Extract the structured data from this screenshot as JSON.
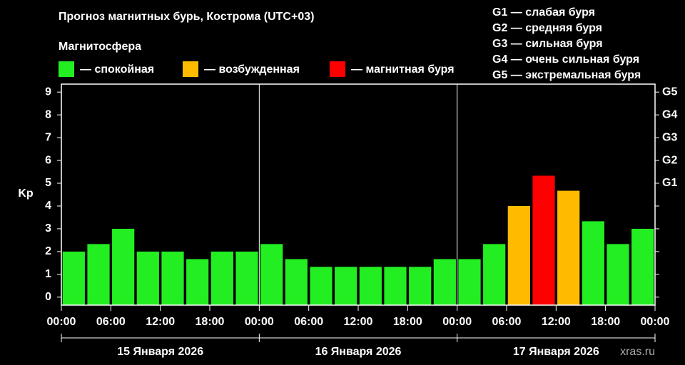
{
  "chart_data": {
    "type": "bar",
    "title": "Прогноз магнитных бурь, Кострома (UTC+03)",
    "legend_title": "Магнитосфера",
    "legend": [
      {
        "label": "— спокойная",
        "color": "#22ee22"
      },
      {
        "label": "— возбужденная",
        "color": "#ffbb00"
      },
      {
        "label": "— магнитная буря",
        "color": "#ff0000"
      }
    ],
    "scale_notes": [
      "G1 — слабая буря",
      "G2 — средняя буря",
      "G3 — сильная буря",
      "G4 — очень сильная буря",
      "G5 — экстремальная буря"
    ],
    "y_label": "Kp",
    "x": [
      1.5,
      4.5,
      7.5,
      10.5,
      13.5,
      16.5,
      19.5,
      22.5,
      25.5,
      28.5,
      31.5,
      34.5,
      37.5,
      40.5,
      43.5,
      46.5,
      49.5,
      52.5,
      55.5,
      58.5,
      61.5,
      64.5,
      67.5,
      70.5
    ],
    "values": [
      2,
      2.33,
      3,
      2,
      2,
      1.67,
      2,
      2,
      2.33,
      1.67,
      1.33,
      1.33,
      1.33,
      1.33,
      1.33,
      1.67,
      1.67,
      2.33,
      4,
      5.33,
      4.67,
      3.33,
      2.33,
      3
    ],
    "colors": [
      "#22ee22",
      "#22ee22",
      "#22ee22",
      "#22ee22",
      "#22ee22",
      "#22ee22",
      "#22ee22",
      "#22ee22",
      "#22ee22",
      "#22ee22",
      "#22ee22",
      "#22ee22",
      "#22ee22",
      "#22ee22",
      "#22ee22",
      "#22ee22",
      "#22ee22",
      "#22ee22",
      "#ffbb00",
      "#ff0000",
      "#ffbb00",
      "#22ee22",
      "#22ee22",
      "#22ee22"
    ],
    "xlim": [
      0,
      72
    ],
    "xticks": [
      {
        "value": 0,
        "label": "00:00"
      },
      {
        "value": 6,
        "label": "06:00"
      },
      {
        "value": 12,
        "label": "12:00"
      },
      {
        "value": 18,
        "label": "18:00"
      },
      {
        "value": 24,
        "label": "00:00"
      },
      {
        "value": 30,
        "label": "06:00"
      },
      {
        "value": 36,
        "label": "12:00"
      },
      {
        "value": 42,
        "label": "18:00"
      },
      {
        "value": 48,
        "label": "00:00"
      },
      {
        "value": 54,
        "label": "06:00"
      },
      {
        "value": 60,
        "label": "12:00"
      },
      {
        "value": 66,
        "label": "18:00"
      },
      {
        "value": 72,
        "label": "00:00"
      }
    ],
    "days": [
      "15 Января 2026",
      "16 Января 2026",
      "17 Января 2026"
    ],
    "ylim": [
      -0.35,
      9.35
    ],
    "yticks": [
      0,
      1,
      2,
      3,
      4,
      5,
      6,
      7,
      8,
      9
    ],
    "y2ticks": [
      {
        "value": 5,
        "label": "G1"
      },
      {
        "value": 6,
        "label": "G2"
      },
      {
        "value": 7,
        "label": "G3"
      },
      {
        "value": 8,
        "label": "G4"
      },
      {
        "value": 9,
        "label": "G5"
      }
    ],
    "watermark": "xras.ru"
  }
}
